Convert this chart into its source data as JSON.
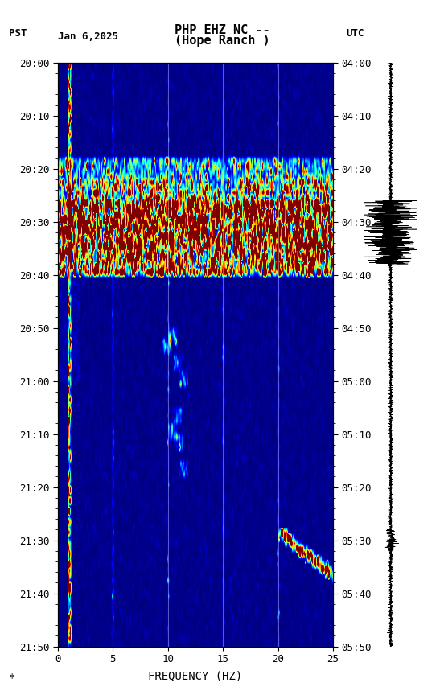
{
  "title_line1": "PHP EHZ NC --",
  "title_line2": "(Hope Ranch )",
  "left_label": "PST",
  "date_label": "Jan 6,2025",
  "right_label": "UTC",
  "xlabel": "FREQUENCY (HZ)",
  "freq_min": 0,
  "freq_max": 25,
  "pst_ticks": [
    "20:00",
    "20:10",
    "20:20",
    "20:30",
    "20:40",
    "20:50",
    "21:00",
    "21:10",
    "21:20",
    "21:30",
    "21:40",
    "21:50"
  ],
  "utc_ticks": [
    "04:00",
    "04:10",
    "04:20",
    "04:30",
    "04:40",
    "04:50",
    "05:00",
    "05:10",
    "05:20",
    "05:30",
    "05:40",
    "05:50"
  ],
  "background_color": "#ffffff",
  "fig_width": 5.52,
  "fig_height": 8.64
}
